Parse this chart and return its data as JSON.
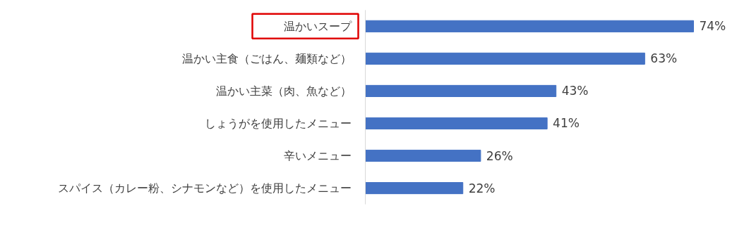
{
  "chart_data": {
    "type": "bar",
    "orientation": "horizontal",
    "categories": [
      "温かいスープ",
      "温かい主食（ごはん、麺類など）",
      "温かい主菜（肉、魚など）",
      "しょうがを使用したメニュー",
      "辛いメニュー",
      "スパイス（カレー粉、シナモンなど）を使用したメニュー"
    ],
    "values": [
      74,
      63,
      43,
      41,
      26,
      22
    ],
    "color": "#4472c4",
    "value_labels": [
      "74%",
      "63%",
      "43%",
      "41%",
      "26%",
      "22%"
    ]
  }
}
